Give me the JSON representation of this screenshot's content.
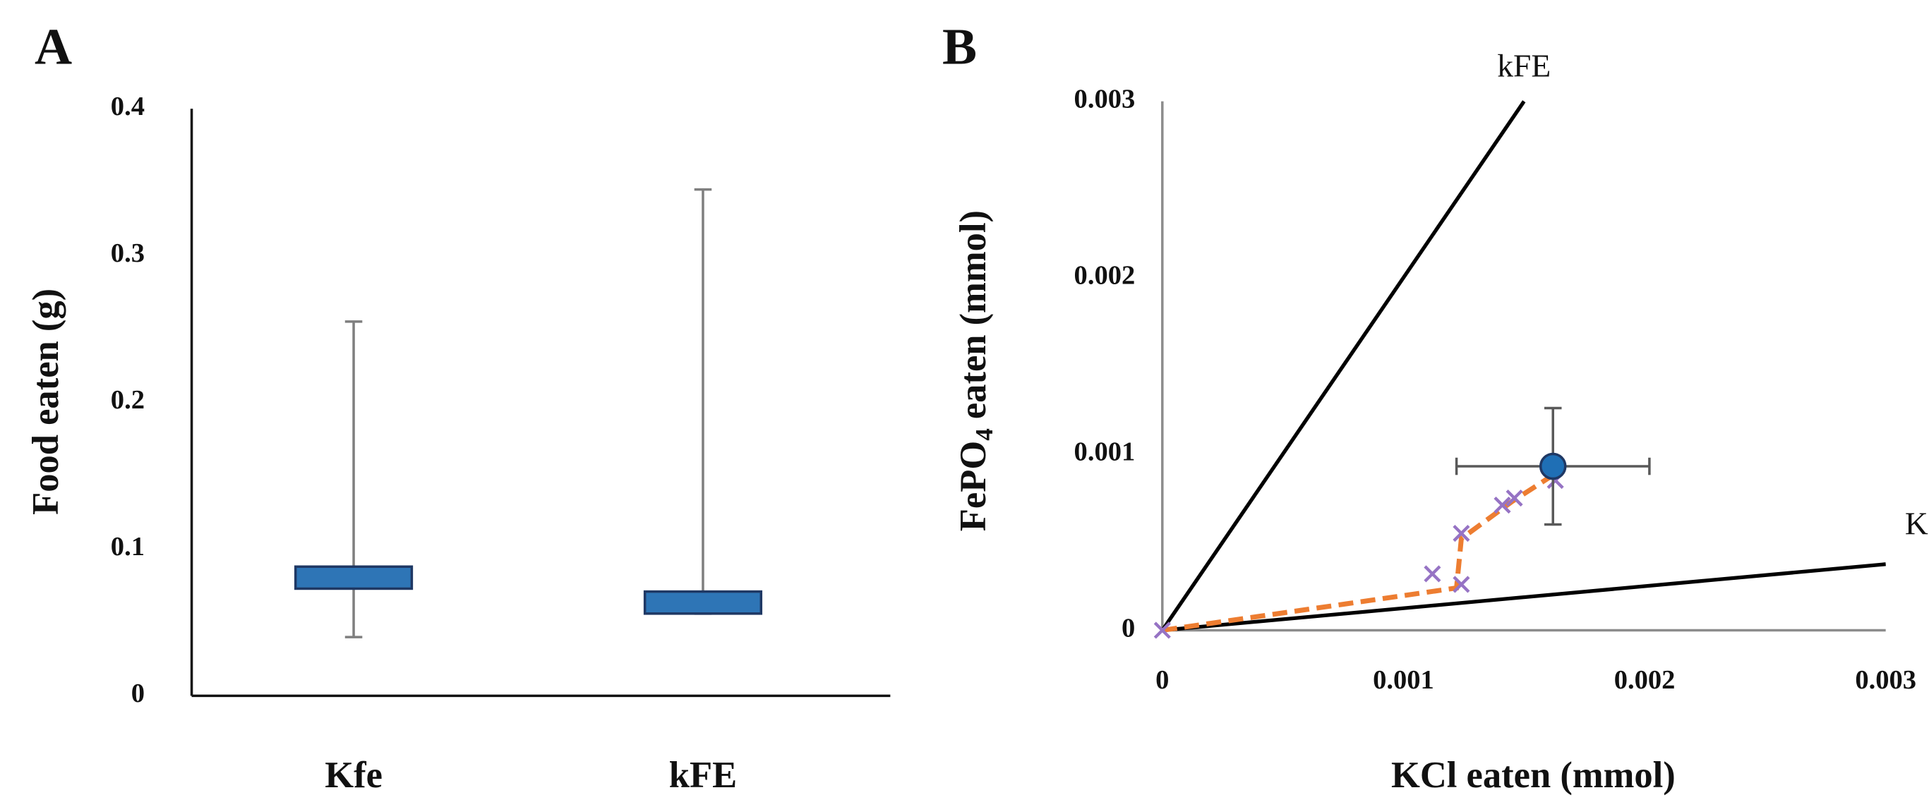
{
  "chart_data": [
    {
      "type": "box",
      "panel_label": "A",
      "ylabel": "Food eaten (g)",
      "categories": [
        "Kfe",
        "kFE"
      ],
      "box_low": [
        0.073,
        0.056
      ],
      "box_high": [
        0.088,
        0.071
      ],
      "whisker_low": [
        0.04,
        0.056
      ],
      "whisker_high": [
        0.255,
        0.345
      ],
      "ylim": [
        0,
        0.4
      ],
      "yticks": [
        0,
        0.1,
        0.2,
        0.3,
        0.4
      ],
      "color": "#2e75b6",
      "edge_color": "#1f3864",
      "whisker_color": "#7f7f7f"
    },
    {
      "type": "scatter",
      "panel_label": "B",
      "xlabel": "KCl eaten (mmol)",
      "ylabel": [
        "FePO",
        "4",
        " eaten (mmol)"
      ],
      "xlim": [
        0,
        0.003
      ],
      "ylim": [
        0,
        0.003
      ],
      "xticks": [
        0,
        0.001,
        0.002,
        0.003
      ],
      "yticks": [
        0,
        0.001,
        0.002,
        0.003
      ],
      "lines": [
        {
          "name": "kFE",
          "color": "#000000",
          "x": [
            0,
            0.0015
          ],
          "y": [
            0,
            0.003
          ]
        },
        {
          "name": "Kfe",
          "color": "#000000",
          "x": [
            0,
            0.003
          ],
          "y": [
            0,
            0.000375
          ]
        }
      ],
      "trajectory": {
        "color": "#ed7d31",
        "x": [
          0,
          0.00122,
          0.00124,
          0.00145,
          0.00162
        ],
        "y": [
          0,
          0.00024,
          0.00052,
          0.00073,
          0.00088
        ]
      },
      "points": {
        "color": "#9673c4",
        "x": [
          0,
          0.00112,
          0.00124,
          0.00124,
          0.00141,
          0.00146,
          0.00163
        ],
        "y": [
          0,
          0.00032,
          0.00026,
          0.00055,
          0.00071,
          0.00075,
          0.00085
        ]
      },
      "mean": {
        "color": "#1f6fb5",
        "x": 0.00162,
        "y": 0.00093,
        "xerr": 0.0004,
        "yerr": 0.00033
      }
    }
  ]
}
